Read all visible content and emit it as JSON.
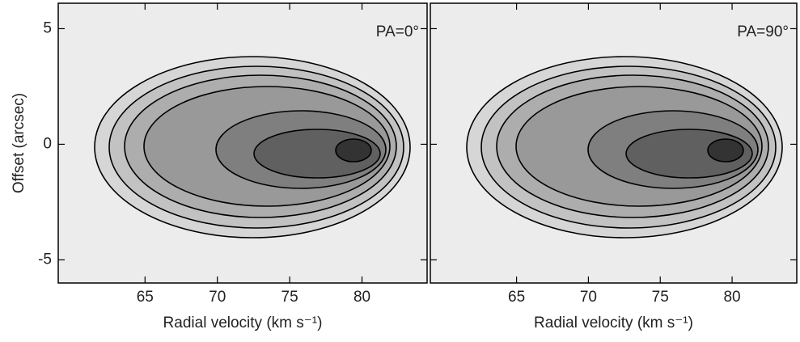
{
  "chart_data": [
    {
      "type": "contour",
      "annotation": "PA=0°",
      "xlabel": "Radial velocity (km s⁻¹)",
      "ylabel": "Offset (arcsec)",
      "xlim": [
        59,
        84.5
      ],
      "xticks": [
        65,
        70,
        75,
        80
      ],
      "ylim": [
        -6,
        6.1
      ],
      "yticks": [
        -5,
        0,
        5
      ]
    },
    {
      "type": "contour",
      "annotation": "PA=90°",
      "xlabel": "Radial velocity (km s⁻¹)",
      "xlim": [
        59,
        84.5
      ],
      "xticks": [
        65,
        70,
        75,
        80
      ],
      "ylim": [
        -6,
        6.1
      ],
      "yticks": [
        -5,
        0,
        5
      ]
    }
  ]
}
